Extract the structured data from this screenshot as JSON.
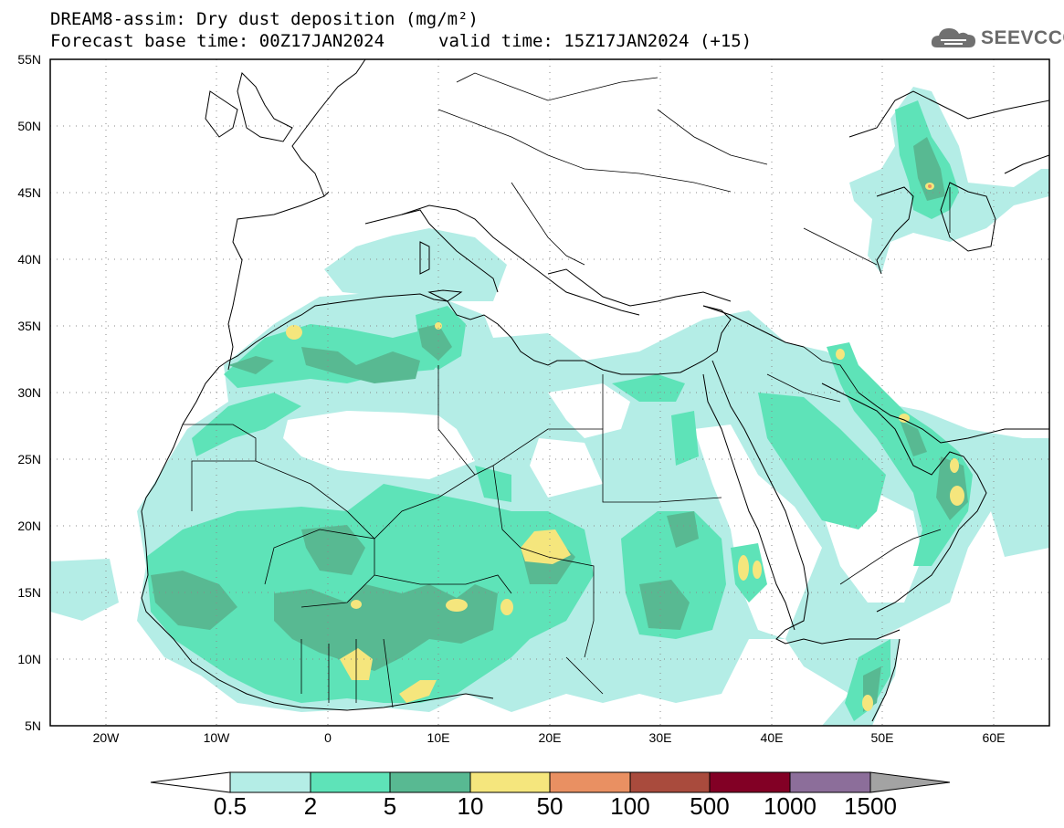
{
  "header": {
    "title_line1": "DREAM8-assim: Dry dust deposition (mg/m²)",
    "title_line2_base": "Forecast base time: 00Z17JAN2024",
    "title_line2_valid": "valid time: 15Z17JAN2024 (+15)"
  },
  "logo": {
    "text": "SEEVCCC",
    "icon": "cloud-icon"
  },
  "map": {
    "projection": "lat-lon",
    "lon_range": [
      -25,
      65
    ],
    "lat_range": [
      5,
      55
    ],
    "lat_ticks": [
      "55N",
      "50N",
      "45N",
      "40N",
      "35N",
      "30N",
      "25N",
      "20N",
      "15N",
      "10N",
      "5N"
    ],
    "lon_ticks": [
      "20W",
      "10W",
      "0",
      "10E",
      "20E",
      "30E",
      "40E",
      "50E",
      "60E"
    ],
    "grid": "dotted"
  },
  "colorbar": {
    "labels": [
      "0.5",
      "2",
      "5",
      "10",
      "50",
      "100",
      "500",
      "1000",
      "1500"
    ],
    "colors": [
      "#b4ede6",
      "#5ee3b8",
      "#58b992",
      "#f5e67d",
      "#e99062",
      "#a94b3d",
      "#820025",
      "#8c6e9a",
      "#a3a3a3"
    ],
    "low_color": "#ffffff"
  }
}
